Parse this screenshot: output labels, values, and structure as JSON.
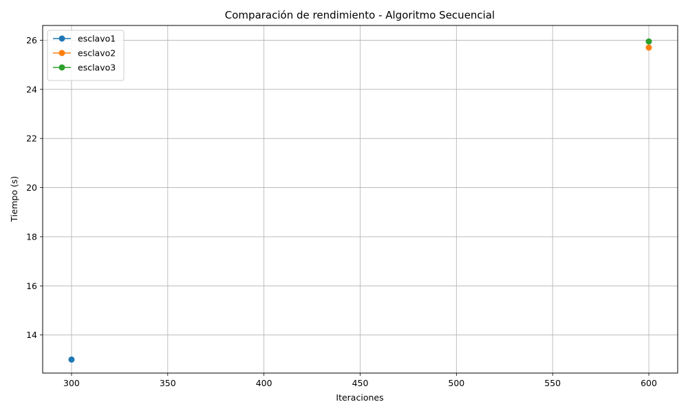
{
  "chart_data": {
    "type": "line",
    "title": "Comparación de rendimiento - Algoritmo Secuencial",
    "xlabel": "Iteraciones",
    "ylabel": "Tiempo (s)",
    "xlim": [
      285,
      615
    ],
    "ylim": [
      12.45,
      26.6
    ],
    "xticks": [
      "300",
      "350",
      "400",
      "450",
      "500",
      "550",
      "600"
    ],
    "yticks": [
      "14",
      "16",
      "18",
      "20",
      "22",
      "24",
      "26"
    ],
    "grid": true,
    "legend_position": "top-left",
    "series": [
      {
        "name": "esclavo1",
        "color": "#1f77b4",
        "marker": "circle",
        "points": [
          {
            "x": 300,
            "y": 13.0
          }
        ]
      },
      {
        "name": "esclavo2",
        "color": "#ff7f0e",
        "marker": "circle",
        "points": [
          {
            "x": 600,
            "y": 25.7
          }
        ]
      },
      {
        "name": "esclavo3",
        "color": "#2ca02c",
        "marker": "circle",
        "points": [
          {
            "x": 600,
            "y": 25.95
          }
        ]
      }
    ]
  }
}
